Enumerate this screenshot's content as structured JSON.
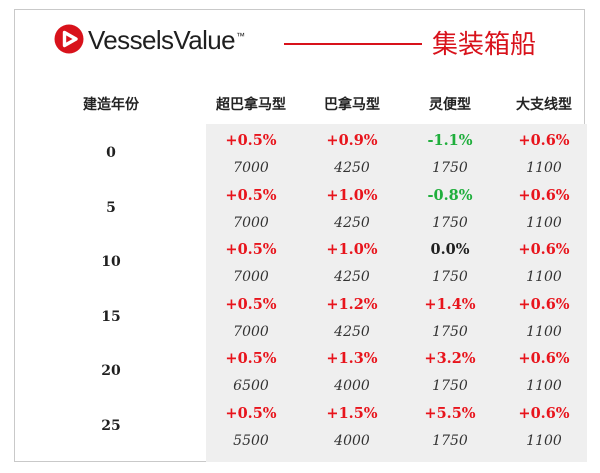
{
  "header": {
    "brand_name": "VesselsValue",
    "brand_tm": "™",
    "title": "集装箱船",
    "accent_color": "#d8121b"
  },
  "table": {
    "row_header_label": "建造年份",
    "columns": [
      "超巴拿马型",
      "巴拿马型",
      "灵便型",
      "大支线型"
    ],
    "rows": [
      {
        "age": "0",
        "changes": [
          "+0.5%",
          "+0.9%",
          "-1.1%",
          "+0.6%"
        ],
        "values": [
          "7000",
          "4250",
          "1750",
          "1100"
        ]
      },
      {
        "age": "5",
        "changes": [
          "+0.5%",
          "+1.0%",
          "-0.8%",
          "+0.6%"
        ],
        "values": [
          "7000",
          "4250",
          "1750",
          "1100"
        ]
      },
      {
        "age": "10",
        "changes": [
          "+0.5%",
          "+1.0%",
          "0.0%",
          "+0.6%"
        ],
        "values": [
          "7000",
          "4250",
          "1750",
          "1100"
        ]
      },
      {
        "age": "15",
        "changes": [
          "+0.5%",
          "+1.2%",
          "+1.4%",
          "+0.6%"
        ],
        "values": [
          "7000",
          "4250",
          "1750",
          "1100"
        ]
      },
      {
        "age": "20",
        "changes": [
          "+0.5%",
          "+1.3%",
          "+3.2%",
          "+0.6%"
        ],
        "values": [
          "6500",
          "4000",
          "1750",
          "1100"
        ]
      },
      {
        "age": "25",
        "changes": [
          "+0.5%",
          "+1.5%",
          "+5.5%",
          "+0.6%"
        ],
        "values": [
          "5500",
          "4000",
          "1750",
          "1100"
        ]
      }
    ],
    "colors": {
      "up": "#e8141c",
      "down": "#1fae3c",
      "flat": "#1f1f1f"
    }
  }
}
